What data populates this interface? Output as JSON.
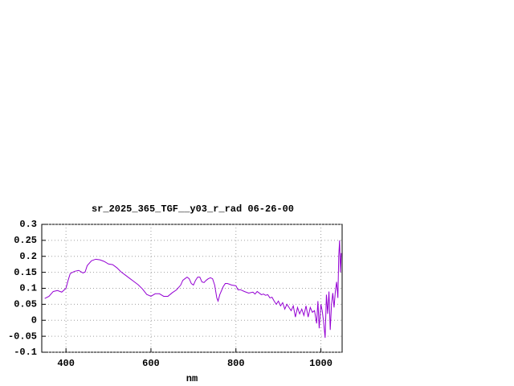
{
  "chart_data": {
    "type": "line",
    "title": "sr_2025_365_TGF__y03_r_rad 06-26-00",
    "x_label": "nm",
    "color": "#9400d3",
    "grid": true,
    "xlim": [
      343,
      1050
    ],
    "ylim": [
      -0.1,
      0.3
    ],
    "xticks": [
      400,
      600,
      800,
      1000
    ],
    "yticks": [
      0.3,
      0.25,
      0.2,
      0.15,
      0.1,
      0.05,
      0,
      -0.05,
      -0.1
    ],
    "x": [
      350,
      360,
      370,
      380,
      390,
      400,
      405,
      410,
      420,
      430,
      440,
      445,
      450,
      460,
      470,
      480,
      490,
      500,
      510,
      520,
      530,
      540,
      550,
      560,
      570,
      580,
      590,
      600,
      610,
      620,
      630,
      640,
      650,
      660,
      670,
      675,
      680,
      685,
      690,
      695,
      700,
      705,
      710,
      715,
      720,
      725,
      730,
      735,
      740,
      745,
      750,
      755,
      758,
      762,
      770,
      775,
      780,
      790,
      800,
      805,
      810,
      820,
      830,
      840,
      845,
      850,
      855,
      860,
      865,
      870,
      875,
      880,
      885,
      890,
      895,
      900,
      905,
      910,
      915,
      920,
      925,
      930,
      935,
      940,
      945,
      950,
      955,
      960,
      965,
      970,
      975,
      980,
      985,
      990,
      993,
      996,
      1000,
      1003,
      1006,
      1010,
      1013,
      1016,
      1019,
      1022,
      1025,
      1028,
      1031,
      1034,
      1037,
      1040,
      1042,
      1044,
      1046,
      1048
    ],
    "values": [
      0.068,
      0.075,
      0.09,
      0.093,
      0.088,
      0.1,
      0.125,
      0.146,
      0.153,
      0.156,
      0.148,
      0.151,
      0.171,
      0.186,
      0.191,
      0.189,
      0.184,
      0.176,
      0.174,
      0.164,
      0.151,
      0.141,
      0.131,
      0.121,
      0.111,
      0.098,
      0.081,
      0.075,
      0.083,
      0.083,
      0.075,
      0.075,
      0.086,
      0.095,
      0.11,
      0.125,
      0.13,
      0.135,
      0.13,
      0.115,
      0.11,
      0.125,
      0.135,
      0.135,
      0.12,
      0.118,
      0.125,
      0.13,
      0.133,
      0.13,
      0.11,
      0.07,
      0.06,
      0.08,
      0.105,
      0.115,
      0.115,
      0.11,
      0.108,
      0.095,
      0.096,
      0.09,
      0.085,
      0.088,
      0.082,
      0.09,
      0.085,
      0.08,
      0.082,
      0.078,
      0.08,
      0.07,
      0.072,
      0.06,
      0.05,
      0.06,
      0.045,
      0.055,
      0.035,
      0.05,
      0.04,
      0.03,
      0.045,
      0.01,
      0.04,
      0.02,
      0.035,
      0.015,
      0.045,
      0.01,
      0.04,
      0.025,
      0.03,
      -0.01,
      0.06,
      -0.025,
      0.05,
      0.03,
      0.0,
      -0.055,
      0.08,
      0.02,
      0.09,
      -0.03,
      0.05,
      0.085,
      0.04,
      0.09,
      0.12,
      0.07,
      0.2,
      0.25,
      0.15,
      0.21
    ]
  }
}
